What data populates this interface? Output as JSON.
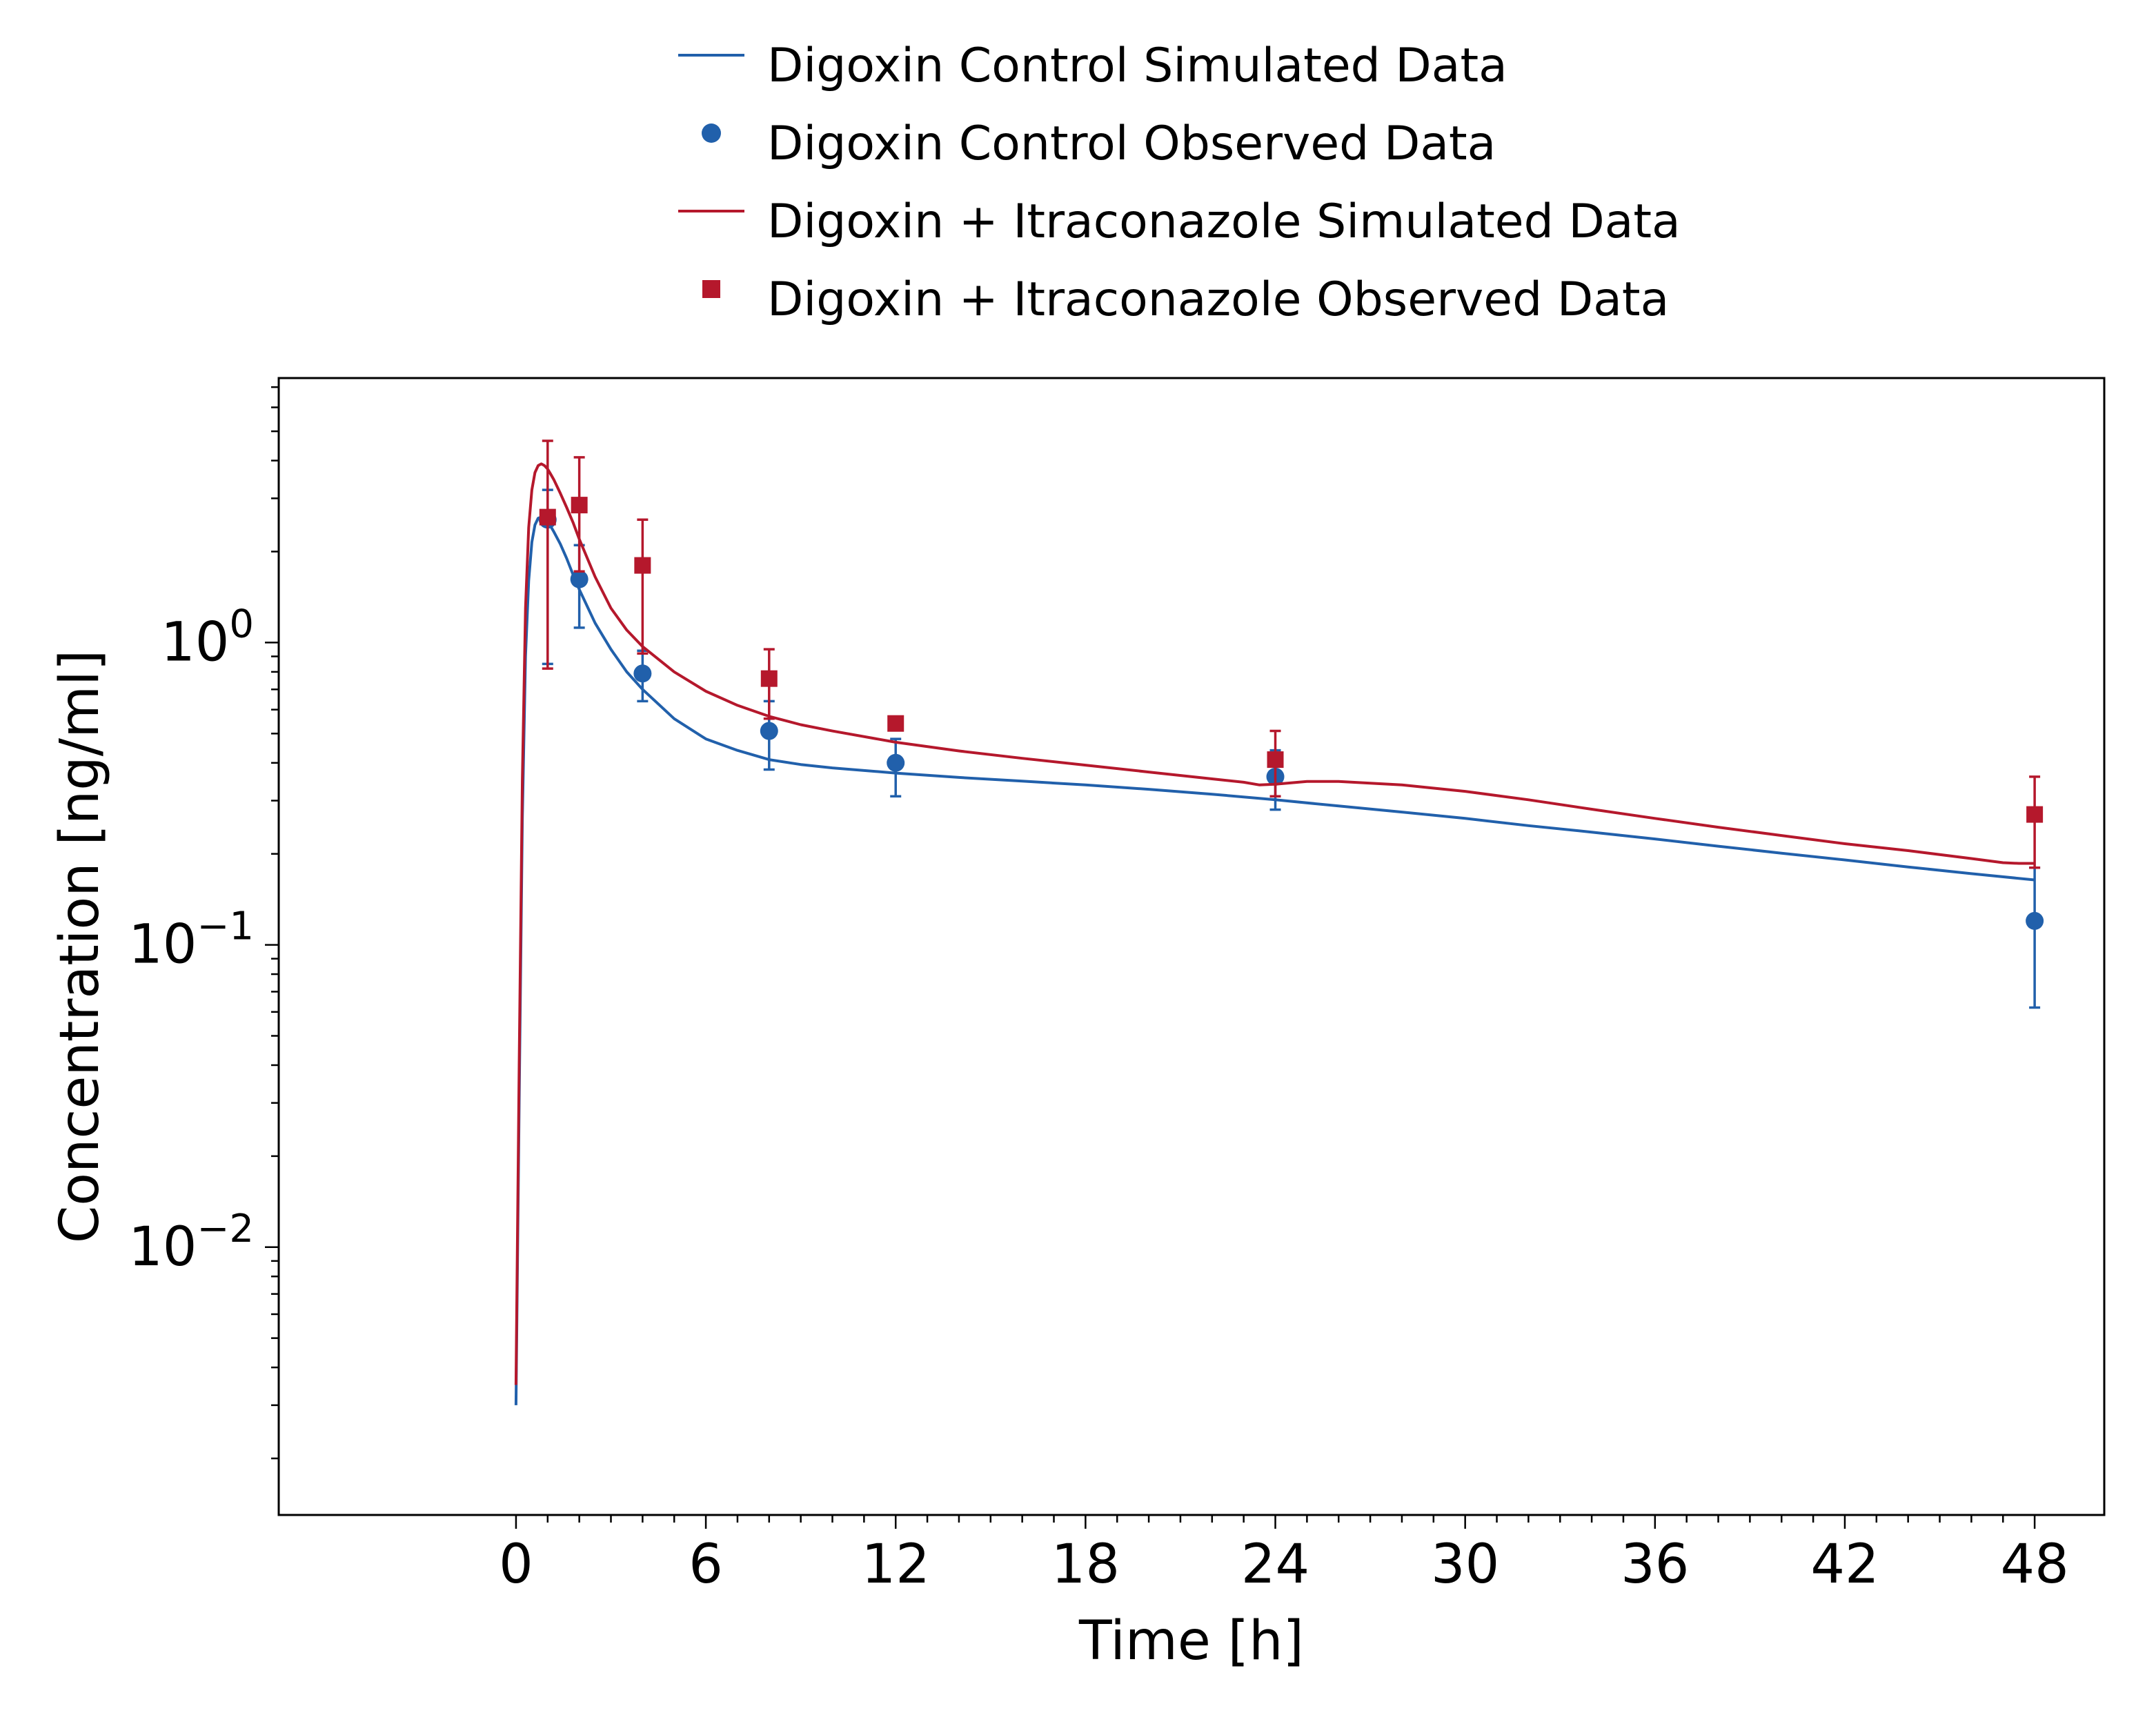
{
  "chart_data": {
    "type": "line",
    "xlabel": "Time [h]",
    "ylabel": "Concentration [ng/ml]",
    "xlim": [
      -7.5,
      50.2
    ],
    "ylim": [
      0.0013,
      7.5
    ],
    "y_scale": "log",
    "x_ticks": [
      0,
      6,
      12,
      18,
      24,
      30,
      36,
      42,
      48
    ],
    "x_tick_labels": [
      "0",
      "6",
      "12",
      "18",
      "24",
      "30",
      "36",
      "42",
      "48"
    ],
    "y_ticks": [
      {
        "value": 1,
        "base": "10",
        "exp": "0"
      },
      {
        "value": 0.1,
        "base": "10",
        "exp": "−1"
      },
      {
        "value": 0.01,
        "base": "10",
        "exp": "−2"
      }
    ],
    "grid": false,
    "legend_position": "top-center",
    "colors": {
      "control": "#2160ab",
      "itraconazole": "#b5182c"
    },
    "series": [
      {
        "name": "Digoxin Control Simulated Data",
        "kind": "line",
        "color": "#2160ab",
        "x": [
          0,
          0.1,
          0.2,
          0.3,
          0.4,
          0.5,
          0.6,
          0.7,
          0.8,
          0.9,
          1.0,
          1.1,
          1.2,
          1.4,
          1.6,
          1.8,
          2.0,
          2.5,
          3,
          3.5,
          4,
          5,
          6,
          7,
          8,
          9,
          10,
          12,
          14,
          16,
          18,
          20,
          22,
          24,
          26,
          28,
          30,
          32,
          34,
          36,
          38,
          40,
          42,
          44,
          46,
          48
        ],
        "y": [
          0.003,
          0.03,
          0.26,
          0.9,
          1.6,
          2.15,
          2.45,
          2.58,
          2.6,
          2.57,
          2.5,
          2.42,
          2.32,
          2.12,
          1.9,
          1.68,
          1.5,
          1.16,
          0.95,
          0.8,
          0.7,
          0.56,
          0.48,
          0.44,
          0.41,
          0.395,
          0.385,
          0.37,
          0.358,
          0.348,
          0.338,
          0.327,
          0.315,
          0.302,
          0.288,
          0.275,
          0.262,
          0.248,
          0.236,
          0.224,
          0.212,
          0.201,
          0.191,
          0.181,
          0.172,
          0.164
        ]
      },
      {
        "name": "Digoxin Control Observed Data",
        "kind": "scatter",
        "marker": "circle",
        "color": "#2160ab",
        "x": [
          1,
          2,
          4,
          8,
          12,
          24,
          48
        ],
        "y": [
          2.55,
          1.62,
          0.79,
          0.51,
          0.4,
          0.36,
          0.12
        ],
        "y_lower": [
          0.85,
          1.12,
          0.64,
          0.38,
          0.31,
          0.28,
          0.062
        ],
        "y_upper": [
          3.2,
          2.1,
          0.94,
          0.64,
          0.48,
          0.44,
          0.18
        ]
      },
      {
        "name": "Digoxin + Itraconazole Simulated Data",
        "kind": "line",
        "color": "#b5182c",
        "x": [
          0,
          0.1,
          0.2,
          0.3,
          0.4,
          0.5,
          0.6,
          0.7,
          0.8,
          0.9,
          1.0,
          1.1,
          1.2,
          1.4,
          1.6,
          1.8,
          2.0,
          2.5,
          3,
          3.5,
          4,
          5,
          6,
          7,
          8,
          9,
          10,
          12,
          14,
          16,
          18,
          20,
          22,
          23,
          23.5,
          24,
          25,
          26,
          28,
          30,
          32,
          34,
          36,
          38,
          40,
          42,
          44,
          46,
          47,
          47.5,
          48
        ],
        "y": [
          0.0035,
          0.04,
          0.35,
          1.3,
          2.4,
          3.2,
          3.65,
          3.85,
          3.9,
          3.85,
          3.75,
          3.6,
          3.45,
          3.12,
          2.8,
          2.5,
          2.2,
          1.65,
          1.3,
          1.1,
          0.97,
          0.8,
          0.69,
          0.62,
          0.57,
          0.535,
          0.51,
          0.468,
          0.438,
          0.414,
          0.393,
          0.373,
          0.354,
          0.345,
          0.338,
          0.34,
          0.347,
          0.347,
          0.338,
          0.322,
          0.302,
          0.281,
          0.262,
          0.245,
          0.23,
          0.216,
          0.205,
          0.193,
          0.187,
          0.186,
          0.186
        ]
      },
      {
        "name": "Digoxin + Itraconazole Observed Data",
        "kind": "scatter",
        "marker": "square",
        "color": "#b5182c",
        "x": [
          1,
          2,
          4,
          8,
          12,
          24,
          48
        ],
        "y": [
          2.6,
          2.85,
          1.8,
          0.76,
          0.54,
          0.41,
          0.27
        ],
        "y_lower": [
          0.82,
          1.72,
          0.92,
          0.56,
          0.54,
          0.31,
          0.18
        ],
        "y_upper": [
          4.65,
          4.1,
          2.55,
          0.95,
          0.54,
          0.51,
          0.36
        ]
      }
    ]
  }
}
